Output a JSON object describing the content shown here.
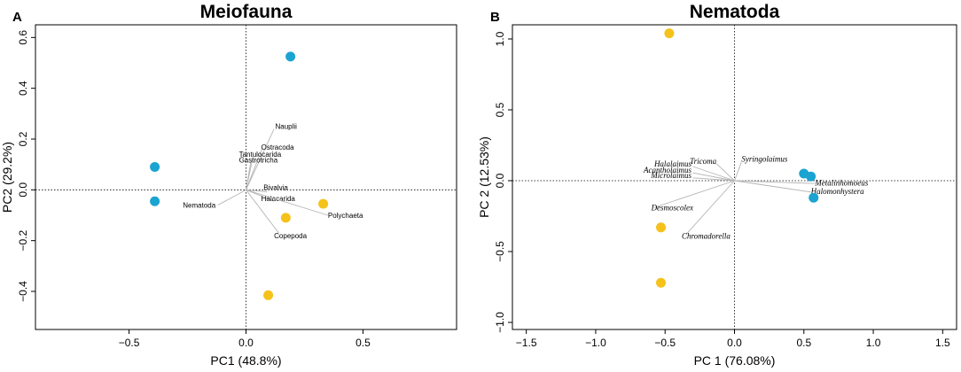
{
  "colors": {
    "blue": "#1ba3d1",
    "yellow": "#f5c21b"
  },
  "chart_data": [
    {
      "type": "scatter",
      "panel": "A",
      "title": "Meiofauna",
      "xlabel": "PC1 (48.8%)",
      "ylabel": "PC2 (29.2%)",
      "xlim": [
        -0.9,
        0.9
      ],
      "ylim": [
        -0.55,
        0.65
      ],
      "xticks": [
        -0.5,
        0.0,
        0.5
      ],
      "xtick_labels": [
        "−0.5",
        "0.0",
        "0.5"
      ],
      "yticks": [
        -0.4,
        -0.2,
        0.0,
        0.2,
        0.4,
        0.6
      ],
      "ytick_labels": [
        "−0.4",
        "−0.2",
        "0.0",
        "0.2",
        "0.4",
        "0.6"
      ],
      "italic_labels": false,
      "points": [
        {
          "x": 0.19,
          "y": 0.525,
          "group": "blue"
        },
        {
          "x": -0.39,
          "y": 0.09,
          "group": "blue"
        },
        {
          "x": -0.39,
          "y": -0.045,
          "group": "blue"
        },
        {
          "x": 0.33,
          "y": -0.055,
          "group": "yellow"
        },
        {
          "x": 0.17,
          "y": -0.11,
          "group": "yellow"
        },
        {
          "x": 0.095,
          "y": -0.415,
          "group": "yellow"
        }
      ],
      "vectors": [
        {
          "name": "Nauplii",
          "x": 0.12,
          "y": 0.24,
          "lx": 0.125,
          "ly": 0.24,
          "anchor": "start"
        },
        {
          "name": "Ostracoda",
          "x": 0.07,
          "y": 0.165,
          "lx": 0.065,
          "ly": 0.158,
          "anchor": "start"
        },
        {
          "name": "Tantulocarida",
          "x": 0.03,
          "y": 0.13,
          "lx": -0.03,
          "ly": 0.13,
          "anchor": "start"
        },
        {
          "name": "Gastrotricha",
          "x": 0.02,
          "y": 0.108,
          "lx": -0.03,
          "ly": 0.108,
          "anchor": "start"
        },
        {
          "name": "Bivalvia",
          "x": 0.09,
          "y": -0.008,
          "lx": 0.075,
          "ly": 0.0,
          "anchor": "start"
        },
        {
          "name": "Halacarida",
          "x": 0.12,
          "y": -0.045,
          "lx": 0.065,
          "ly": -0.045,
          "anchor": "start"
        },
        {
          "name": "Polychaeta",
          "x": 0.35,
          "y": -0.1,
          "lx": 0.35,
          "ly": -0.11,
          "anchor": "start"
        },
        {
          "name": "Copepoda",
          "x": 0.14,
          "y": -0.17,
          "lx": 0.12,
          "ly": -0.19,
          "anchor": "start"
        },
        {
          "name": "Nematoda",
          "x": -0.12,
          "y": -0.06,
          "lx": -0.13,
          "ly": -0.07,
          "anchor": "end"
        }
      ]
    },
    {
      "type": "scatter",
      "panel": "B",
      "title": "Nematoda",
      "xlabel": "PC 1 (76.08%)",
      "ylabel": "PC 2 (12.53%)",
      "xlim": [
        -1.6,
        1.6
      ],
      "ylim": [
        -1.05,
        1.1
      ],
      "xticks": [
        -1.5,
        -1.0,
        -0.5,
        0.0,
        0.5,
        1.0,
        1.5
      ],
      "xtick_labels": [
        "−1.5",
        "−1.0",
        "−0.5",
        "0.0",
        "0.5",
        "1.0",
        "1.5"
      ],
      "yticks": [
        -1.0,
        -0.5,
        0.0,
        0.5,
        1.0
      ],
      "ytick_labels": [
        "−1.0",
        "−0.5",
        "0.0",
        "0.5",
        "1.0"
      ],
      "italic_labels": true,
      "points": [
        {
          "x": 0.5,
          "y": 0.05,
          "group": "blue"
        },
        {
          "x": 0.55,
          "y": 0.03,
          "group": "blue"
        },
        {
          "x": 0.57,
          "y": -0.12,
          "group": "blue"
        },
        {
          "x": -0.47,
          "y": 1.04,
          "group": "yellow"
        },
        {
          "x": -0.53,
          "y": -0.33,
          "group": "yellow"
        },
        {
          "x": -0.53,
          "y": -0.72,
          "group": "yellow"
        }
      ],
      "vectors": [
        {
          "name": "Syringolaimus",
          "x": 0.05,
          "y": 0.13,
          "lx": 0.05,
          "ly": 0.135,
          "anchor": "start"
        },
        {
          "name": "Tricoma",
          "x": -0.13,
          "y": 0.12,
          "lx": -0.13,
          "ly": 0.118,
          "anchor": "end"
        },
        {
          "name": "Halalaimus",
          "x": -0.3,
          "y": 0.1,
          "lx": -0.31,
          "ly": 0.1,
          "anchor": "end"
        },
        {
          "name": "Acantholaimus",
          "x": -0.3,
          "y": 0.055,
          "lx": -0.31,
          "ly": 0.055,
          "anchor": "end"
        },
        {
          "name": "Microlaimus",
          "x": -0.3,
          "y": 0.02,
          "lx": -0.31,
          "ly": 0.018,
          "anchor": "end"
        },
        {
          "name": "Metalinhomoeus",
          "x": 0.58,
          "y": -0.02,
          "lx": 0.58,
          "ly": -0.035,
          "anchor": "start"
        },
        {
          "name": "Halomonhystera",
          "x": 0.55,
          "y": -0.08,
          "lx": 0.55,
          "ly": -0.095,
          "anchor": "start"
        },
        {
          "name": "Desmoscolex",
          "x": -0.58,
          "y": -0.19,
          "lx": -0.6,
          "ly": -0.21,
          "anchor": "start"
        },
        {
          "name": "Chromadorella",
          "x": -0.35,
          "y": -0.38,
          "lx": -0.38,
          "ly": -0.41,
          "anchor": "start"
        }
      ]
    }
  ]
}
